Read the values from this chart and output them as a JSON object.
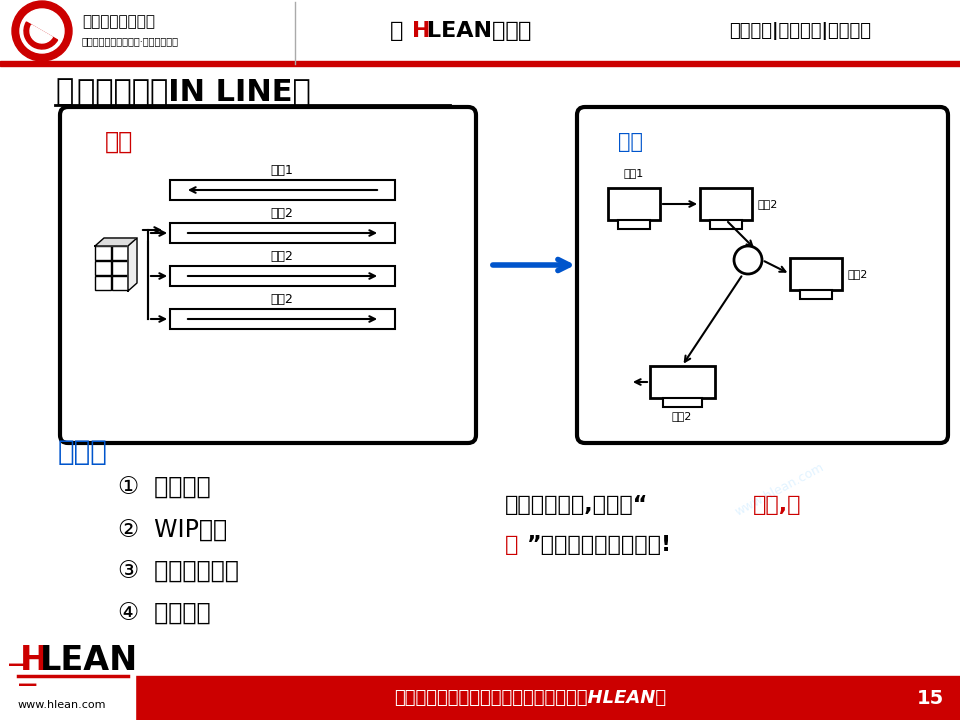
{
  "title_main": "不离群索居（IN LINE）",
  "header_center": "《HLEAN学堂》",
  "header_right": "精益生产|智能制造|管理前沿",
  "header_left1": "精益生产促进中心",
  "header_left2": "中国先进精益管理体系·智能制造系统",
  "footer_text": "做行业标杆，找精弘益；要幸福高效，用HLEAN！",
  "footer_page": "15",
  "footer_url": "www.hlean.com",
  "left_box_label": "离线",
  "right_box_label": "随线",
  "process_labels_left": [
    "工剹1",
    "工剹2",
    "工剹2",
    "工剹2"
  ],
  "process_labels_right": [
    "工剹1",
    "工剹2",
    "工剹2",
    "工剹2"
  ],
  "advantages_title": "優点：",
  "advantages": [
    "①  品质提升",
    "②  WIP减少",
    "③  前置时间减少",
    "④  消除搬运"
  ],
  "right_text_line1_black1": "切勿离线作业,只能以“",
  "right_text_line1_red": "主流,支",
  "right_text_line2_red": "流",
  "right_text_line2_black": "”的概念进行站别布置!",
  "bg_color": "#ffffff",
  "footer_bg": "#cc0000",
  "red_color": "#cc0000",
  "blue_color": "#0055cc",
  "orange_color": "#ff6600",
  "watermark_text": "www.hlean.com"
}
